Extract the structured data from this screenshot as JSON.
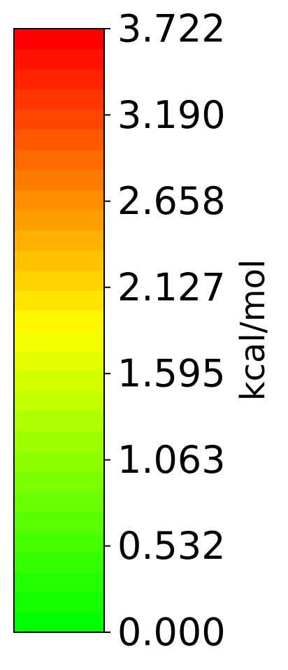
{
  "chart_data": {
    "type": "heatmap",
    "element": "colorbar",
    "orientation": "vertical",
    "label": "kcal/mol",
    "vmin": 0.0,
    "vmax": 3.722,
    "ticks": [
      {
        "value": 3.722,
        "label": "3.722"
      },
      {
        "value": 3.19,
        "label": "3.190"
      },
      {
        "value": 2.658,
        "label": "2.658"
      },
      {
        "value": 2.127,
        "label": "2.127"
      },
      {
        "value": 1.595,
        "label": "1.595"
      },
      {
        "value": 1.063,
        "label": "1.063"
      },
      {
        "value": 0.532,
        "label": "0.532"
      },
      {
        "value": 0.0,
        "label": "0.000"
      }
    ],
    "colormap": {
      "low_color": "#00ff00",
      "mid_color": "#ffff00",
      "high_color": "#ff0000",
      "levels": 30
    }
  }
}
